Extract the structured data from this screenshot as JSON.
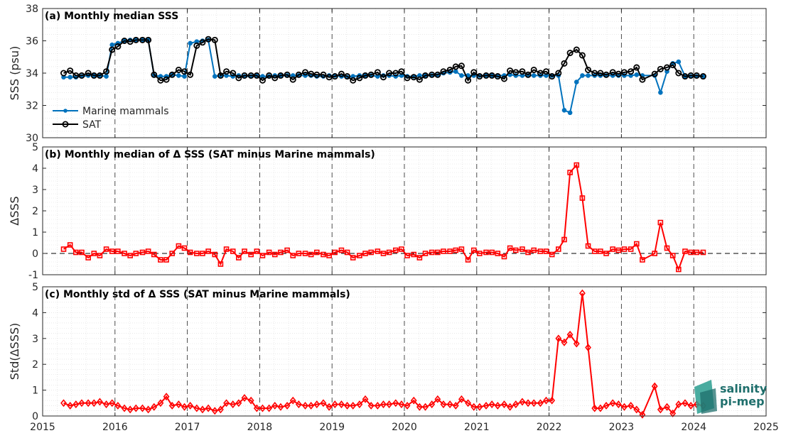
{
  "chart_data": [
    {
      "type": "line",
      "title": "(a) Monthly median SSS",
      "xlabel": "",
      "ylabel": "SSS (psu)",
      "xlim": [
        2015,
        2025
      ],
      "ylim": [
        30,
        38
      ],
      "yticks": [
        30,
        32,
        34,
        36,
        38
      ],
      "grid": true,
      "legend_position": "bottom-left",
      "series": [
        {
          "name": "Marine mammals",
          "color": "#0072BD",
          "marker": "dot",
          "x": [
            2015.29,
            2015.38,
            2015.46,
            2015.54,
            2015.63,
            2015.71,
            2015.79,
            2015.88,
            2015.96,
            2016.04,
            2016.13,
            2016.21,
            2016.29,
            2016.38,
            2016.46,
            2016.54,
            2016.63,
            2016.71,
            2016.79,
            2016.88,
            2016.96,
            2017.04,
            2017.13,
            2017.21,
            2017.29,
            2017.38,
            2017.46,
            2017.54,
            2017.63,
            2017.71,
            2017.79,
            2017.88,
            2017.96,
            2018.04,
            2018.13,
            2018.21,
            2018.29,
            2018.38,
            2018.46,
            2018.54,
            2018.63,
            2018.71,
            2018.79,
            2018.88,
            2018.96,
            2019.04,
            2019.13,
            2019.21,
            2019.29,
            2019.38,
            2019.46,
            2019.54,
            2019.63,
            2019.71,
            2019.79,
            2019.88,
            2019.96,
            2020.04,
            2020.13,
            2020.21,
            2020.29,
            2020.38,
            2020.46,
            2020.54,
            2020.63,
            2020.71,
            2020.79,
            2020.88,
            2020.96,
            2021.04,
            2021.13,
            2021.21,
            2021.29,
            2021.38,
            2021.46,
            2021.54,
            2021.63,
            2021.71,
            2021.79,
            2021.88,
            2021.96,
            2022.04,
            2022.13,
            2022.21,
            2022.29,
            2022.38,
            2022.46,
            2022.54,
            2022.63,
            2022.71,
            2022.79,
            2022.88,
            2022.96,
            2023.04,
            2023.13,
            2023.21,
            2023.29,
            2023.46,
            2023.54,
            2023.63,
            2023.71,
            2023.79,
            2023.88,
            2023.96,
            2024.04,
            2024.13
          ],
          "y": [
            33.75,
            33.75,
            33.75,
            33.8,
            33.85,
            33.85,
            33.85,
            33.8,
            35.75,
            35.85,
            36.0,
            36.05,
            36.05,
            36.05,
            36.05,
            33.85,
            33.8,
            33.8,
            33.9,
            33.85,
            33.8,
            35.85,
            35.95,
            36.0,
            36.05,
            33.8,
            33.85,
            33.85,
            33.8,
            33.85,
            33.8,
            33.8,
            33.85,
            33.8,
            33.8,
            33.85,
            33.85,
            33.85,
            33.85,
            33.85,
            33.85,
            33.85,
            33.8,
            33.8,
            33.85,
            33.85,
            33.8,
            33.75,
            33.8,
            33.85,
            33.85,
            33.85,
            33.8,
            33.85,
            33.85,
            33.8,
            33.85,
            33.8,
            33.8,
            33.85,
            33.85,
            33.85,
            33.85,
            34.0,
            34.05,
            34.1,
            33.85,
            33.85,
            33.85,
            33.85,
            33.85,
            33.85,
            33.85,
            33.85,
            33.9,
            33.85,
            33.85,
            33.85,
            33.85,
            33.85,
            33.85,
            33.85,
            33.85,
            31.7,
            31.55,
            33.45,
            33.85,
            33.85,
            33.85,
            33.85,
            33.85,
            33.85,
            33.85,
            33.85,
            33.85,
            33.9,
            33.85,
            33.85,
            32.8,
            34.1,
            34.6,
            34.7,
            33.8,
            33.8,
            33.8,
            33.8
          ]
        },
        {
          "name": "SAT",
          "color": "#000000",
          "marker": "circle",
          "x": [
            2015.29,
            2015.38,
            2015.46,
            2015.54,
            2015.63,
            2015.71,
            2015.79,
            2015.88,
            2015.96,
            2016.04,
            2016.13,
            2016.21,
            2016.29,
            2016.38,
            2016.46,
            2016.54,
            2016.63,
            2016.71,
            2016.79,
            2016.88,
            2016.96,
            2017.04,
            2017.13,
            2017.21,
            2017.29,
            2017.38,
            2017.46,
            2017.54,
            2017.63,
            2017.71,
            2017.79,
            2017.88,
            2017.96,
            2018.04,
            2018.13,
            2018.21,
            2018.29,
            2018.38,
            2018.46,
            2018.54,
            2018.63,
            2018.71,
            2018.79,
            2018.88,
            2018.96,
            2019.04,
            2019.13,
            2019.21,
            2019.29,
            2019.38,
            2019.46,
            2019.54,
            2019.63,
            2019.71,
            2019.79,
            2019.88,
            2019.96,
            2020.04,
            2020.13,
            2020.21,
            2020.29,
            2020.38,
            2020.46,
            2020.54,
            2020.63,
            2020.71,
            2020.79,
            2020.88,
            2020.96,
            2021.04,
            2021.13,
            2021.21,
            2021.29,
            2021.38,
            2021.46,
            2021.54,
            2021.63,
            2021.71,
            2021.79,
            2021.88,
            2021.96,
            2022.04,
            2022.13,
            2022.21,
            2022.29,
            2022.38,
            2022.46,
            2022.54,
            2022.63,
            2022.71,
            2022.79,
            2022.88,
            2022.96,
            2023.04,
            2023.13,
            2023.21,
            2023.29,
            2023.46,
            2023.54,
            2023.63,
            2023.71,
            2023.79,
            2023.88,
            2023.96,
            2024.04,
            2024.13
          ],
          "y": [
            34.0,
            34.15,
            33.85,
            33.85,
            34.0,
            33.85,
            33.85,
            34.1,
            35.45,
            35.65,
            36.0,
            35.95,
            36.05,
            36.05,
            36.05,
            33.9,
            33.55,
            33.6,
            33.9,
            34.2,
            34.1,
            33.9,
            35.7,
            35.9,
            36.1,
            36.05,
            33.85,
            34.1,
            34.0,
            33.7,
            33.85,
            33.85,
            33.85,
            33.55,
            33.85,
            33.7,
            33.85,
            33.9,
            33.6,
            33.9,
            34.05,
            33.95,
            33.9,
            33.9,
            33.75,
            33.8,
            33.95,
            33.8,
            33.55,
            33.7,
            33.85,
            33.9,
            34.05,
            33.75,
            34.0,
            34.0,
            34.1,
            33.7,
            33.75,
            33.6,
            33.85,
            33.9,
            33.9,
            34.1,
            34.2,
            34.4,
            34.45,
            33.55,
            34.05,
            33.8,
            33.85,
            33.85,
            33.8,
            33.65,
            34.15,
            34.05,
            34.1,
            33.9,
            34.2,
            34.0,
            34.1,
            33.8,
            34.0,
            34.6,
            35.25,
            35.45,
            35.1,
            34.2,
            34.0,
            34.0,
            33.9,
            34.05,
            33.95,
            34.05,
            34.1,
            34.35,
            33.6,
            33.95,
            34.25,
            34.35,
            34.5,
            34.0,
            33.8,
            33.85,
            33.85,
            33.8
          ]
        }
      ]
    },
    {
      "type": "line",
      "title": "(b) Monthly median of Δ SSS (SAT minus Marine mammals)",
      "xlabel": "",
      "ylabel": "ΔSSS",
      "xlim": [
        2015,
        2025
      ],
      "ylim": [
        -1,
        5
      ],
      "yticks": [
        -1,
        0,
        1,
        2,
        3,
        4,
        5
      ],
      "grid": true,
      "reference_line": 0,
      "series": [
        {
          "color": "#FF0000",
          "marker": "square",
          "x": [
            2015.29,
            2015.38,
            2015.46,
            2015.54,
            2015.63,
            2015.71,
            2015.79,
            2015.88,
            2015.96,
            2016.04,
            2016.13,
            2016.21,
            2016.29,
            2016.38,
            2016.46,
            2016.54,
            2016.63,
            2016.71,
            2016.79,
            2016.88,
            2016.96,
            2017.04,
            2017.13,
            2017.21,
            2017.29,
            2017.38,
            2017.46,
            2017.54,
            2017.63,
            2017.71,
            2017.79,
            2017.88,
            2017.96,
            2018.04,
            2018.13,
            2018.21,
            2018.29,
            2018.38,
            2018.46,
            2018.54,
            2018.63,
            2018.71,
            2018.79,
            2018.88,
            2018.96,
            2019.04,
            2019.13,
            2019.21,
            2019.29,
            2019.38,
            2019.46,
            2019.54,
            2019.63,
            2019.71,
            2019.79,
            2019.88,
            2019.96,
            2020.04,
            2020.13,
            2020.21,
            2020.29,
            2020.38,
            2020.46,
            2020.54,
            2020.63,
            2020.71,
            2020.79,
            2020.88,
            2020.96,
            2021.04,
            2021.13,
            2021.21,
            2021.29,
            2021.38,
            2021.46,
            2021.54,
            2021.63,
            2021.71,
            2021.79,
            2021.88,
            2021.96,
            2022.04,
            2022.13,
            2022.21,
            2022.29,
            2022.38,
            2022.46,
            2022.54,
            2022.63,
            2022.71,
            2022.79,
            2022.88,
            2022.96,
            2023.04,
            2023.13,
            2023.21,
            2023.29,
            2023.46,
            2023.54,
            2023.63,
            2023.71,
            2023.79,
            2023.88,
            2023.96,
            2024.04,
            2024.13
          ],
          "y": [
            0.2,
            0.4,
            0.05,
            0.05,
            -0.2,
            0.0,
            -0.1,
            0.2,
            0.1,
            0.1,
            0.0,
            -0.1,
            0.0,
            0.05,
            0.1,
            -0.05,
            -0.3,
            -0.3,
            0.0,
            0.35,
            0.25,
            0.05,
            0.0,
            0.0,
            0.1,
            -0.05,
            -0.5,
            0.2,
            0.1,
            -0.2,
            0.1,
            -0.05,
            0.1,
            -0.1,
            0.05,
            -0.05,
            0.05,
            0.15,
            -0.1,
            0.0,
            0.0,
            -0.05,
            0.05,
            -0.05,
            -0.1,
            0.05,
            0.15,
            0.05,
            -0.2,
            -0.1,
            0.0,
            0.05,
            0.1,
            0.0,
            0.05,
            0.15,
            0.2,
            -0.1,
            -0.05,
            -0.2,
            0.0,
            0.05,
            0.05,
            0.1,
            0.1,
            0.15,
            0.2,
            -0.3,
            0.15,
            0.0,
            0.05,
            0.05,
            0.0,
            -0.15,
            0.25,
            0.15,
            0.2,
            0.05,
            0.15,
            0.1,
            0.1,
            -0.05,
            0.2,
            0.65,
            3.8,
            4.15,
            2.6,
            0.35,
            0.1,
            0.1,
            0.0,
            0.2,
            0.15,
            0.2,
            0.2,
            0.45,
            -0.3,
            0.0,
            1.45,
            0.25,
            -0.1,
            -0.75,
            0.1,
            0.05,
            0.05,
            0.05
          ]
        }
      ]
    },
    {
      "type": "line",
      "title": "(c) Monthly std of Δ SSS (SAT minus Marine mammals)",
      "xlabel": "",
      "ylabel": "Std(ΔSSS)",
      "xlim": [
        2015,
        2025
      ],
      "ylim": [
        0,
        5
      ],
      "yticks": [
        0,
        1,
        2,
        3,
        4,
        5
      ],
      "xticks": [
        2015,
        2016,
        2017,
        2018,
        2019,
        2020,
        2021,
        2022,
        2023,
        2024,
        2025
      ],
      "grid": true,
      "series": [
        {
          "color": "#FF0000",
          "marker": "diamond",
          "x": [
            2015.29,
            2015.38,
            2015.46,
            2015.54,
            2015.63,
            2015.71,
            2015.79,
            2015.88,
            2015.96,
            2016.04,
            2016.13,
            2016.21,
            2016.29,
            2016.38,
            2016.46,
            2016.54,
            2016.63,
            2016.71,
            2016.79,
            2016.88,
            2016.96,
            2017.04,
            2017.13,
            2017.21,
            2017.29,
            2017.38,
            2017.46,
            2017.54,
            2017.63,
            2017.71,
            2017.79,
            2017.88,
            2017.96,
            2018.04,
            2018.13,
            2018.21,
            2018.29,
            2018.38,
            2018.46,
            2018.54,
            2018.63,
            2018.71,
            2018.79,
            2018.88,
            2018.96,
            2019.04,
            2019.13,
            2019.21,
            2019.29,
            2019.38,
            2019.46,
            2019.54,
            2019.63,
            2019.71,
            2019.79,
            2019.88,
            2019.96,
            2020.04,
            2020.13,
            2020.21,
            2020.29,
            2020.38,
            2020.46,
            2020.54,
            2020.63,
            2020.71,
            2020.79,
            2020.88,
            2020.96,
            2021.04,
            2021.13,
            2021.21,
            2021.29,
            2021.38,
            2021.46,
            2021.54,
            2021.63,
            2021.71,
            2021.79,
            2021.88,
            2021.96,
            2022.04,
            2022.13,
            2022.21,
            2022.29,
            2022.38,
            2022.46,
            2022.54,
            2022.63,
            2022.71,
            2022.79,
            2022.88,
            2022.96,
            2023.04,
            2023.13,
            2023.21,
            2023.29,
            2023.46,
            2023.54,
            2023.63,
            2023.71,
            2023.79,
            2023.88,
            2023.96,
            2024.04,
            2024.13
          ],
          "y": [
            0.5,
            0.4,
            0.45,
            0.5,
            0.5,
            0.5,
            0.55,
            0.45,
            0.5,
            0.4,
            0.3,
            0.25,
            0.3,
            0.3,
            0.25,
            0.35,
            0.5,
            0.75,
            0.4,
            0.45,
            0.35,
            0.4,
            0.3,
            0.25,
            0.3,
            0.2,
            0.25,
            0.5,
            0.45,
            0.5,
            0.7,
            0.6,
            0.3,
            0.3,
            0.3,
            0.4,
            0.35,
            0.4,
            0.6,
            0.45,
            0.4,
            0.4,
            0.45,
            0.5,
            0.35,
            0.45,
            0.45,
            0.4,
            0.4,
            0.45,
            0.65,
            0.4,
            0.4,
            0.45,
            0.45,
            0.5,
            0.45,
            0.4,
            0.6,
            0.35,
            0.35,
            0.45,
            0.65,
            0.45,
            0.45,
            0.4,
            0.65,
            0.5,
            0.35,
            0.35,
            0.4,
            0.45,
            0.4,
            0.45,
            0.35,
            0.45,
            0.55,
            0.5,
            0.5,
            0.5,
            0.6,
            0.6,
            3.0,
            2.85,
            3.15,
            2.8,
            4.75,
            2.65,
            0.3,
            0.3,
            0.4,
            0.5,
            0.45,
            0.35,
            0.4,
            0.25,
            0.05,
            1.15,
            0.25,
            0.35,
            0.1,
            0.45,
            0.5,
            0.4,
            0.45,
            0.4
          ]
        }
      ]
    }
  ],
  "logo": {
    "line1": "salinity",
    "line2": "pi-mep"
  }
}
